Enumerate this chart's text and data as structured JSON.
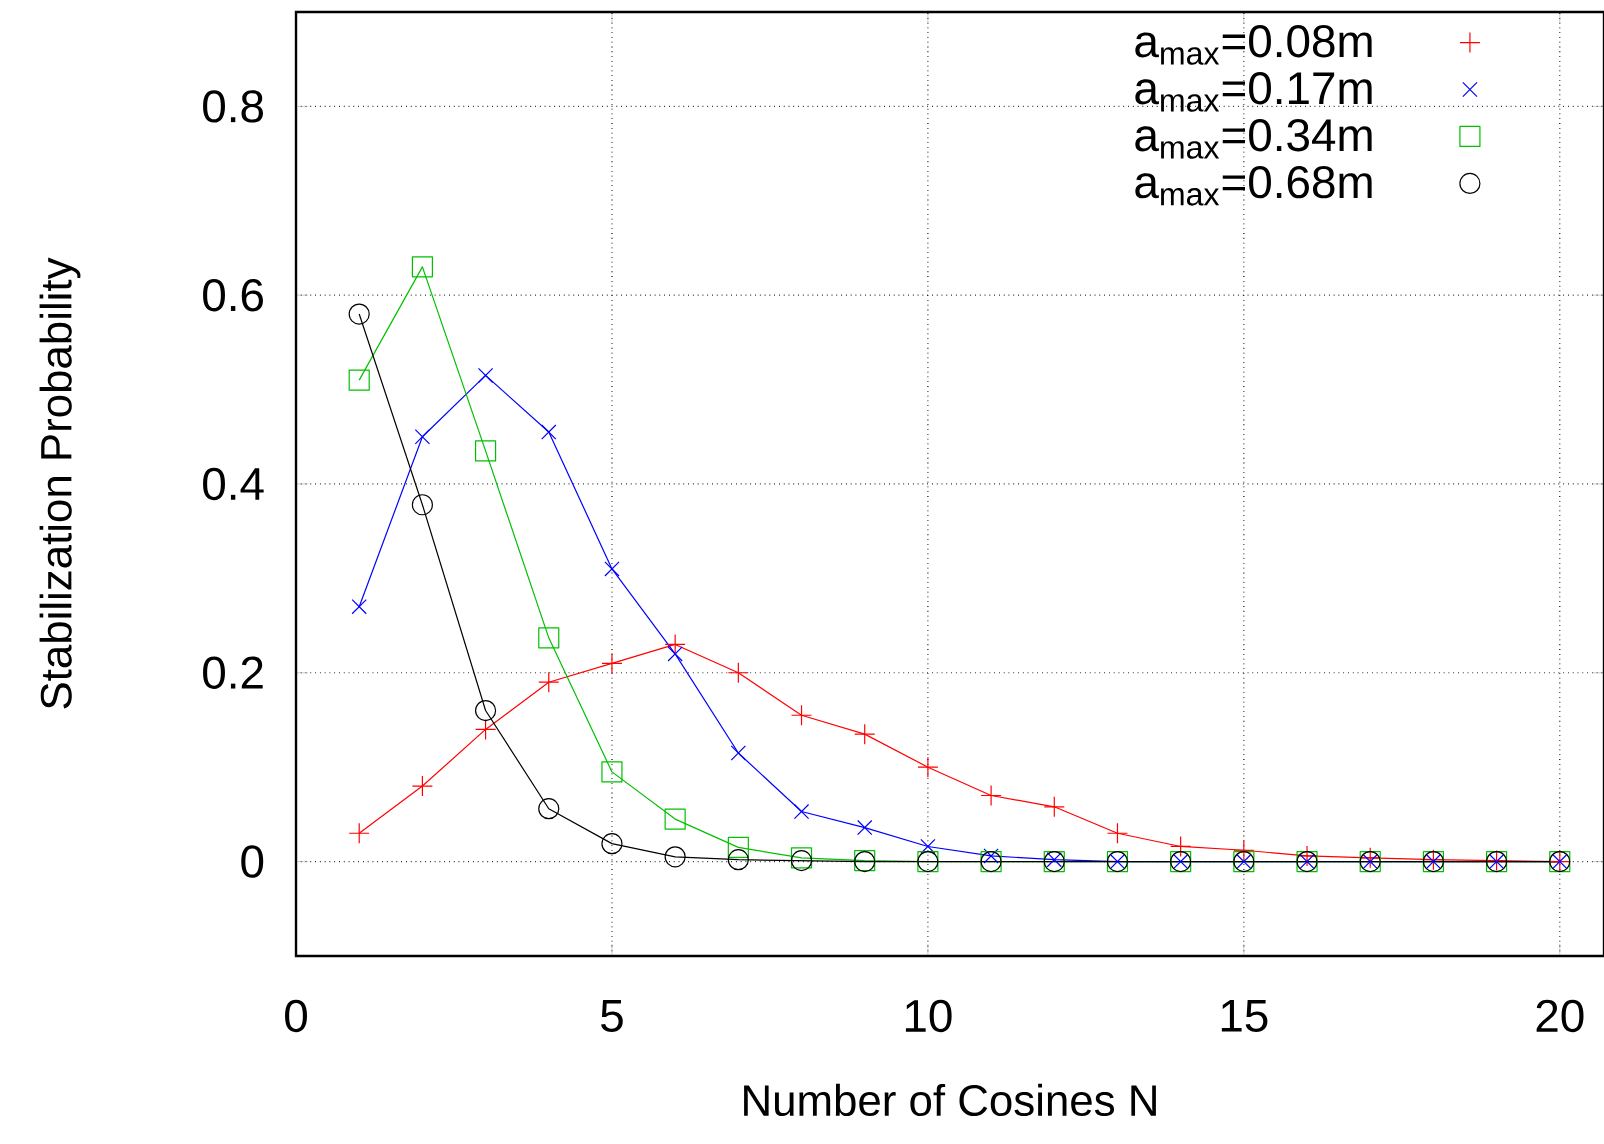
{
  "chart_data": {
    "type": "line",
    "xlabel": "Number of Cosines N",
    "ylabel": "Stabilization Probability",
    "x": [
      1,
      2,
      3,
      4,
      5,
      6,
      7,
      8,
      9,
      10,
      11,
      12,
      13,
      14,
      15,
      16,
      17,
      18,
      19,
      20
    ],
    "series": [
      {
        "name": "a$_{max}$=0.08m",
        "color": "#ff0000",
        "marker": "cross",
        "values": [
          0.03,
          0.08,
          0.14,
          0.19,
          0.21,
          0.23,
          0.2,
          0.155,
          0.135,
          0.1,
          0.07,
          0.058,
          0.03,
          0.016,
          0.012,
          0.006,
          0.004,
          0.002,
          0.001,
          0
        ]
      },
      {
        "name": "a$_{max}$=0.17m",
        "color": "#0000ff",
        "marker": "x",
        "values": [
          0.27,
          0.45,
          0.515,
          0.455,
          0.31,
          0.22,
          0.115,
          0.053,
          0.036,
          0.016,
          0.006,
          0.002,
          0,
          0,
          0,
          0,
          0,
          0,
          0,
          0
        ]
      },
      {
        "name": "a$_{max}$=0.34m",
        "color": "#00c000",
        "marker": "square",
        "values": [
          0.51,
          0.63,
          0.435,
          0.237,
          0.095,
          0.045,
          0.015,
          0.004,
          0.001,
          0,
          0,
          0,
          0,
          0,
          0,
          0,
          0,
          0,
          0,
          0
        ]
      },
      {
        "name": "a$_{max}$=0.68m",
        "color": "#000000",
        "marker": "circle",
        "values": [
          0.58,
          0.378,
          0.16,
          0.056,
          0.019,
          0.005,
          0.002,
          0.001,
          0,
          0,
          0,
          0,
          0,
          0,
          0,
          0,
          0,
          0,
          0,
          0
        ]
      }
    ],
    "xlim": [
      0,
      20.7
    ],
    "ylim": [
      -0.1,
      0.9
    ],
    "xticks": [
      0,
      5,
      10,
      15,
      20
    ],
    "yticks": [
      0,
      0.2,
      0.4,
      0.6,
      0.8
    ],
    "grid": true,
    "legend": "top right",
    "line_style": "solid"
  }
}
